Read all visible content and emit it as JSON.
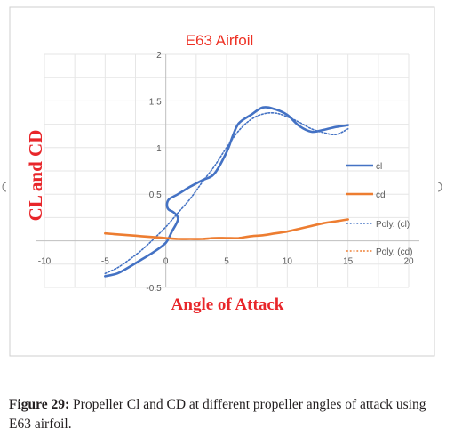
{
  "chart_data": {
    "type": "line",
    "title": "E63 Airfoil",
    "xlabel": "Angle of Attack",
    "ylabel": "CL and CD",
    "xlim": [
      -10,
      20
    ],
    "ylim": [
      -0.5,
      2
    ],
    "xticks": [
      -10,
      -5,
      0,
      5,
      10,
      15,
      20
    ],
    "yticks": [
      -0.5,
      0,
      0.5,
      1,
      1.5,
      2
    ],
    "xtick_labels": [
      "-10",
      "-5",
      "0",
      "5",
      "10",
      "15",
      "20"
    ],
    "ytick_labels": [
      "-0.5",
      "0",
      "0.5",
      "1",
      "1.5",
      "2"
    ],
    "grid": true,
    "legend_position": "right",
    "series": [
      {
        "name": "cl",
        "color": "#4472c4",
        "style": "solid",
        "x": [
          -5,
          -4,
          -3,
          -2,
          -1,
          0,
          0.5,
          1,
          0.7,
          0.2,
          0.1,
          0.3,
          1,
          2,
          3,
          4,
          5,
          5.5,
          6,
          7,
          8,
          9,
          10,
          11,
          12,
          13,
          14,
          15
        ],
        "y": [
          -0.38,
          -0.35,
          -0.28,
          -0.2,
          -0.12,
          -0.02,
          0.1,
          0.23,
          0.3,
          0.34,
          0.4,
          0.45,
          0.5,
          0.58,
          0.65,
          0.72,
          0.95,
          1.12,
          1.26,
          1.35,
          1.43,
          1.41,
          1.35,
          1.23,
          1.17,
          1.19,
          1.22,
          1.24
        ]
      },
      {
        "name": "cd",
        "color": "#ed7d31",
        "style": "solid",
        "x": [
          -5,
          -4,
          -3,
          -2,
          -1,
          0,
          1,
          2,
          3,
          4,
          5,
          6,
          7,
          8,
          9,
          10,
          11,
          12,
          13,
          14,
          15
        ],
        "y": [
          0.08,
          0.07,
          0.06,
          0.05,
          0.04,
          0.03,
          0.02,
          0.02,
          0.02,
          0.03,
          0.03,
          0.03,
          0.05,
          0.06,
          0.08,
          0.1,
          0.13,
          0.16,
          0.19,
          0.21,
          0.23
        ]
      },
      {
        "name": "Poly. (cl)",
        "color": "#4472c4",
        "style": "dotted",
        "x": [
          -5,
          -4,
          -3,
          -2,
          -1,
          0,
          1,
          2,
          3,
          4,
          5,
          6,
          7,
          8,
          9,
          10,
          11,
          12,
          13,
          14,
          15
        ],
        "y": [
          -0.35,
          -0.29,
          -0.2,
          -0.1,
          0.02,
          0.15,
          0.3,
          0.45,
          0.63,
          0.8,
          1.0,
          1.18,
          1.3,
          1.36,
          1.37,
          1.33,
          1.27,
          1.2,
          1.16,
          1.14,
          1.2
        ]
      },
      {
        "name": "Poly. (cd)",
        "color": "#ed7d31",
        "style": "dotted",
        "x": [
          -5,
          -4,
          -3,
          -2,
          -1,
          0,
          1,
          2,
          3,
          4,
          5,
          6,
          7,
          8,
          9,
          10,
          11,
          12,
          13,
          14,
          15
        ],
        "y": [
          0.08,
          0.07,
          0.06,
          0.05,
          0.04,
          0.03,
          0.02,
          0.02,
          0.02,
          0.03,
          0.03,
          0.03,
          0.05,
          0.06,
          0.08,
          0.1,
          0.13,
          0.16,
          0.19,
          0.21,
          0.23
        ]
      }
    ]
  },
  "caption": {
    "label": "Figure 29:",
    "text": " Propeller Cl and CD at different propeller angles of attack using E63 airfoil."
  }
}
